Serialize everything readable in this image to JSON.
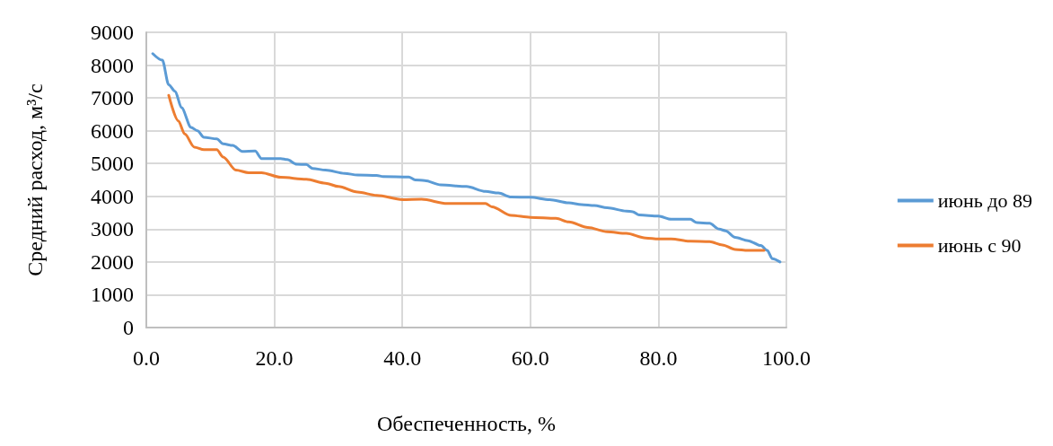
{
  "chart_data": {
    "type": "line",
    "xlabel": "Обеспеченность, %",
    "ylabel": "Средний расход, м³/с",
    "xlim": [
      0,
      100
    ],
    "xticks": [
      {
        "value": 0,
        "label": "0.0"
      },
      {
        "value": 20,
        "label": "20.0"
      },
      {
        "value": 40,
        "label": "40.0"
      },
      {
        "value": 60,
        "label": "60.0"
      },
      {
        "value": 80,
        "label": "80.0"
      },
      {
        "value": 100,
        "label": "100.0"
      }
    ],
    "ylim": [
      0,
      9000
    ],
    "yticks": [
      0,
      1000,
      2000,
      3000,
      4000,
      5000,
      6000,
      7000,
      8000,
      9000
    ],
    "grid": true,
    "legend": "right",
    "marker": "none",
    "line_style": "solid",
    "series": [
      {
        "name": "июнь до 89",
        "color": "#5b9bd5",
        "x": [
          1,
          2.5,
          3.5,
          4.5,
          5.5,
          7,
          8,
          9,
          11,
          12,
          13.5,
          15,
          17,
          18,
          21,
          22,
          23.5,
          25,
          26,
          28,
          31,
          33,
          36,
          37,
          41,
          42,
          43.5,
          46,
          50,
          53,
          55,
          57,
          60,
          63,
          66,
          68,
          70,
          72,
          75,
          76,
          77,
          80,
          82,
          85,
          86,
          88,
          89.5,
          90.5,
          92,
          94,
          96,
          97,
          97.8,
          99
        ],
        "values": [
          8350,
          8150,
          7400,
          7200,
          6700,
          6100,
          6000,
          5800,
          5750,
          5600,
          5550,
          5370,
          5380,
          5150,
          5150,
          5120,
          4980,
          4970,
          4850,
          4800,
          4700,
          4650,
          4640,
          4600,
          4590,
          4500,
          4480,
          4350,
          4300,
          4150,
          4100,
          3980,
          3970,
          3900,
          3800,
          3750,
          3720,
          3650,
          3550,
          3530,
          3430,
          3400,
          3300,
          3300,
          3200,
          3180,
          3000,
          2950,
          2750,
          2650,
          2500,
          2350,
          2100,
          2000
        ]
      },
      {
        "name": "июнь с 90",
        "color": "#ed7d31",
        "x": [
          3.5,
          5,
          6,
          7.5,
          9,
          11,
          12,
          14,
          16,
          18,
          21,
          25,
          28,
          30,
          33,
          36,
          40,
          43,
          47,
          50,
          53,
          54,
          57,
          60,
          64,
          66,
          69,
          72,
          75,
          78,
          80,
          82,
          85,
          88,
          90,
          92,
          94,
          96.5
        ],
        "values": [
          7080,
          6300,
          5900,
          5500,
          5420,
          5420,
          5200,
          4800,
          4720,
          4720,
          4580,
          4520,
          4400,
          4300,
          4130,
          4030,
          3900,
          3910,
          3780,
          3780,
          3780,
          3680,
          3420,
          3360,
          3330,
          3220,
          3050,
          2920,
          2870,
          2730,
          2700,
          2700,
          2630,
          2620,
          2520,
          2380,
          2350,
          2350
        ]
      }
    ]
  }
}
